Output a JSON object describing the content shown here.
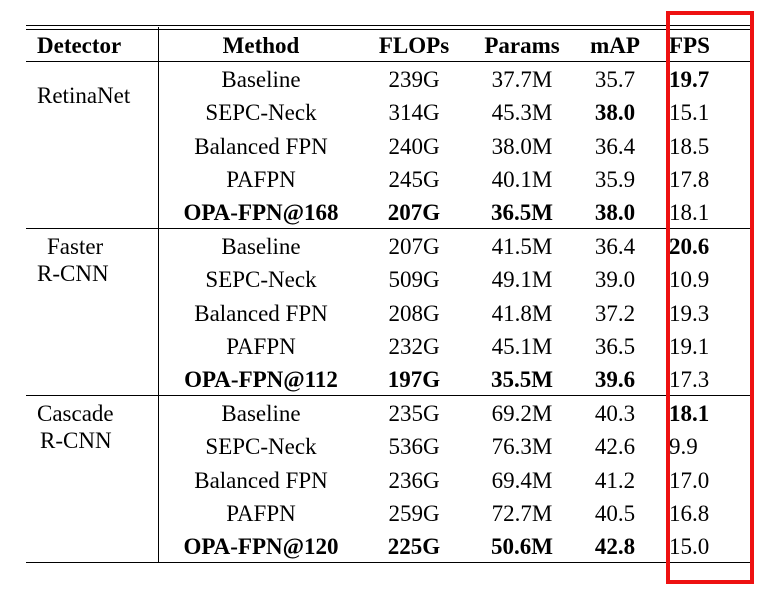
{
  "header": {
    "detector": "Detector",
    "method": "Method",
    "flops": "FLOPs",
    "params": "Params",
    "map": "mAP",
    "fps": "FPS"
  },
  "groups": [
    {
      "detector_lines": [
        "RetinaNet"
      ],
      "rows": [
        {
          "method": "Baseline",
          "flops": "239G",
          "params": "37.7M",
          "map": "35.7",
          "fps": "19.7",
          "bold": {
            "fps": true
          }
        },
        {
          "method": "SEPC-Neck",
          "flops": "314G",
          "params": "45.3M",
          "map": "38.0",
          "fps": "15.1",
          "bold": {
            "map": true
          }
        },
        {
          "method": "Balanced FPN",
          "flops": "240G",
          "params": "38.0M",
          "map": "36.4",
          "fps": "18.5",
          "bold": {}
        },
        {
          "method": "PAFPN",
          "flops": "245G",
          "params": "40.1M",
          "map": "35.9",
          "fps": "17.8",
          "bold": {}
        },
        {
          "method": "OPA-FPN@168",
          "flops": "207G",
          "params": "36.5M",
          "map": "38.0",
          "fps": "18.1",
          "bold": {
            "method": true,
            "flops": true,
            "params": true,
            "map": true
          }
        }
      ]
    },
    {
      "detector_lines": [
        "Faster",
        "R-CNN"
      ],
      "rows": [
        {
          "method": "Baseline",
          "flops": "207G",
          "params": "41.5M",
          "map": "36.4",
          "fps": "20.6",
          "bold": {
            "fps": true
          }
        },
        {
          "method": "SEPC-Neck",
          "flops": "509G",
          "params": "49.1M",
          "map": "39.0",
          "fps": "10.9",
          "bold": {}
        },
        {
          "method": "Balanced FPN",
          "flops": "208G",
          "params": "41.8M",
          "map": "37.2",
          "fps": "19.3",
          "bold": {}
        },
        {
          "method": "PAFPN",
          "flops": "232G",
          "params": "45.1M",
          "map": "36.5",
          "fps": "19.1",
          "bold": {}
        },
        {
          "method": "OPA-FPN@112",
          "flops": "197G",
          "params": "35.5M",
          "map": "39.6",
          "fps": "17.3",
          "bold": {
            "method": true,
            "flops": true,
            "params": true,
            "map": true
          }
        }
      ]
    },
    {
      "detector_lines": [
        "Cascade",
        "R-CNN"
      ],
      "rows": [
        {
          "method": "Baseline",
          "flops": "235G",
          "params": "69.2M",
          "map": "40.3",
          "fps": "18.1",
          "bold": {
            "fps": true
          }
        },
        {
          "method": "SEPC-Neck",
          "flops": "536G",
          "params": "76.3M",
          "map": "42.6",
          "fps": "9.9",
          "bold": {}
        },
        {
          "method": "Balanced FPN",
          "flops": "236G",
          "params": "69.4M",
          "map": "41.2",
          "fps": "17.0",
          "bold": {}
        },
        {
          "method": "PAFPN",
          "flops": "259G",
          "params": "72.7M",
          "map": "40.5",
          "fps": "16.8",
          "bold": {}
        },
        {
          "method": "OPA-FPN@120",
          "flops": "225G",
          "params": "50.6M",
          "map": "42.8",
          "fps": "15.0",
          "bold": {
            "method": true,
            "flops": true,
            "params": true,
            "map": true
          }
        }
      ]
    }
  ],
  "highlight_color": "#ee1111"
}
